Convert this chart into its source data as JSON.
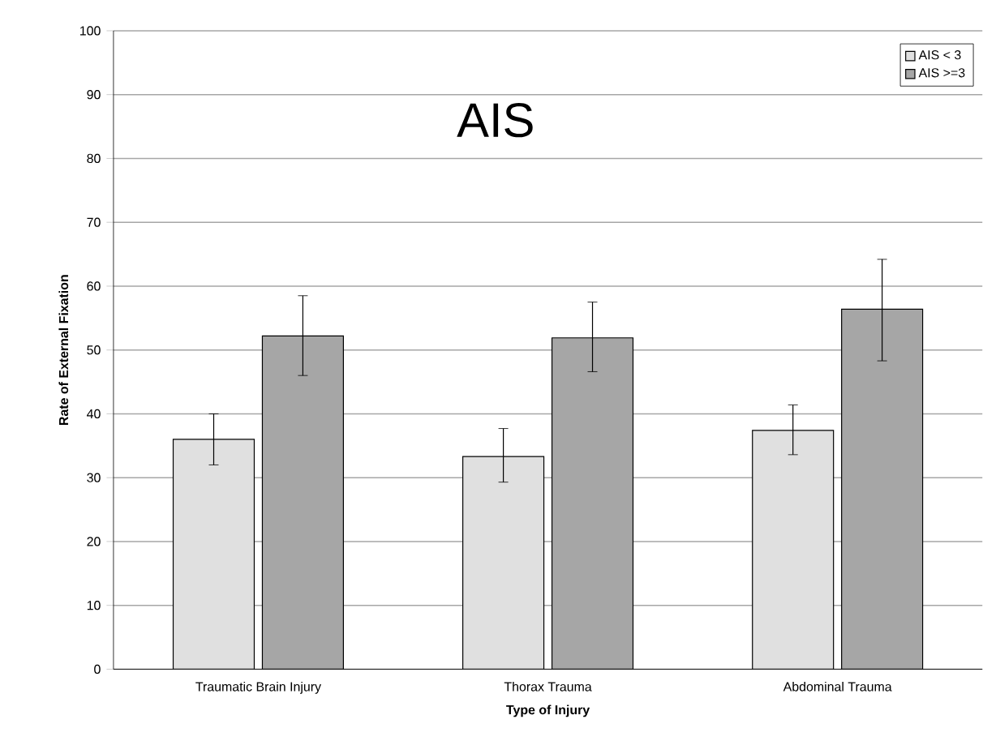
{
  "chart_data": {
    "type": "bar",
    "xlabel": "Type of Injury",
    "ylabel": "Rate of External Fixation",
    "annotations": [
      "AIS"
    ],
    "categories": [
      "Traumatic Brain Injury",
      "Thorax Trauma",
      "Abdominal Trauma"
    ],
    "series": [
      {
        "name": "AIS < 3",
        "color": "#e0e0e0",
        "values": [
          36,
          33.3,
          37.4
        ],
        "errors": [
          [
            32,
            40
          ],
          [
            29.3,
            37.7
          ],
          [
            33.6,
            41.4
          ]
        ]
      },
      {
        "name": "AIS >=3",
        "color": "#a6a6a6",
        "values": [
          52.2,
          51.9,
          56.4
        ],
        "errors": [
          [
            46,
            58.5
          ],
          [
            46.6,
            57.5
          ],
          [
            48.3,
            64.2
          ]
        ]
      }
    ],
    "ylim": [
      0,
      100
    ],
    "yticks": [
      0,
      10,
      20,
      30,
      40,
      50,
      60,
      70,
      80,
      90,
      100
    ],
    "grid": "y",
    "legend": "top right"
  }
}
